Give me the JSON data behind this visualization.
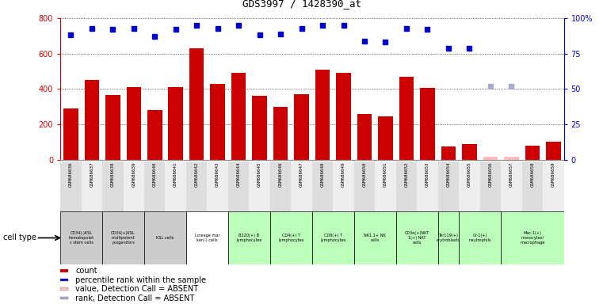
{
  "title": "GDS3997 / 1428390_at",
  "gsm_labels": [
    "GSM686636",
    "GSM686637",
    "GSM686638",
    "GSM686639",
    "GSM686640",
    "GSM686641",
    "GSM686642",
    "GSM686643",
    "GSM686644",
    "GSM686645",
    "GSM686646",
    "GSM686647",
    "GSM686648",
    "GSM686649",
    "GSM686650",
    "GSM686651",
    "GSM686652",
    "GSM686653",
    "GSM686654",
    "GSM686655",
    "GSM686656",
    "GSM686657",
    "GSM686658",
    "GSM686659"
  ],
  "counts": [
    290,
    450,
    365,
    410,
    280,
    410,
    630,
    430,
    490,
    360,
    300,
    370,
    510,
    490,
    260,
    245,
    470,
    405,
    75,
    90,
    15,
    15,
    80,
    100
  ],
  "percentile_ranks": [
    88,
    93,
    92,
    93,
    87,
    92,
    95,
    93,
    95,
    88,
    89,
    93,
    95,
    95,
    84,
    83,
    93,
    92,
    79,
    79,
    null,
    null,
    null,
    null
  ],
  "absent_values": [
    null,
    null,
    null,
    null,
    null,
    null,
    null,
    null,
    null,
    null,
    null,
    null,
    null,
    null,
    null,
    null,
    null,
    null,
    null,
    null,
    15,
    15,
    null,
    null
  ],
  "absent_ranks": [
    null,
    null,
    null,
    null,
    null,
    null,
    null,
    null,
    null,
    null,
    null,
    null,
    null,
    null,
    null,
    null,
    null,
    null,
    null,
    null,
    52,
    52,
    null,
    null
  ],
  "bar_color": "#cc0000",
  "dot_color": "#0000cc",
  "absent_bar_color": "#ffbbbb",
  "absent_dot_color": "#aaaacc",
  "ylim_left": [
    0,
    800
  ],
  "ylim_right": [
    0,
    100
  ],
  "yticks_left": [
    0,
    200,
    400,
    600,
    800
  ],
  "yticks_right": [
    0,
    25,
    50,
    75,
    100
  ],
  "cell_groups": [
    {
      "label": "CD34(-)KSL\nhematopoiet\nc stem cells",
      "start": 0,
      "end": 2,
      "color": "#cccccc"
    },
    {
      "label": "CD34(+)KSL\nmultipotent\nprogenitors",
      "start": 2,
      "end": 4,
      "color": "#cccccc"
    },
    {
      "label": "KSL cells",
      "start": 4,
      "end": 6,
      "color": "#cccccc"
    },
    {
      "label": "Lineage mar\nker(-) cells",
      "start": 6,
      "end": 8,
      "color": "#ffffff"
    },
    {
      "label": "B220(+) B\nlymphocytes",
      "start": 8,
      "end": 10,
      "color": "#bbffbb"
    },
    {
      "label": "CD4(+) T\nlymphocytes",
      "start": 10,
      "end": 12,
      "color": "#bbffbb"
    },
    {
      "label": "CD8(+) T\nlymphocytes",
      "start": 12,
      "end": 14,
      "color": "#bbffbb"
    },
    {
      "label": "NK1.1+ NK\ncells",
      "start": 14,
      "end": 16,
      "color": "#bbffbb"
    },
    {
      "label": "CD3e(+)NKT\n1(+) NKT\ncells",
      "start": 16,
      "end": 18,
      "color": "#bbffbb"
    },
    {
      "label": "Ter119(+)\nerytroblasts",
      "start": 18,
      "end": 19,
      "color": "#bbffbb"
    },
    {
      "label": "Gr-1(+)\nneutrophils",
      "start": 19,
      "end": 21,
      "color": "#bbffbb"
    },
    {
      "label": "Mac-1(+)\nmonocytes/\nmacrophage",
      "start": 21,
      "end": 24,
      "color": "#bbffbb"
    }
  ],
  "legend_items": [
    {
      "label": "count",
      "color": "#cc0000"
    },
    {
      "label": "percentile rank within the sample",
      "color": "#0000cc"
    },
    {
      "label": "value, Detection Call = ABSENT",
      "color": "#ffbbbb"
    },
    {
      "label": "rank, Detection Call = ABSENT",
      "color": "#aaaacc"
    }
  ]
}
